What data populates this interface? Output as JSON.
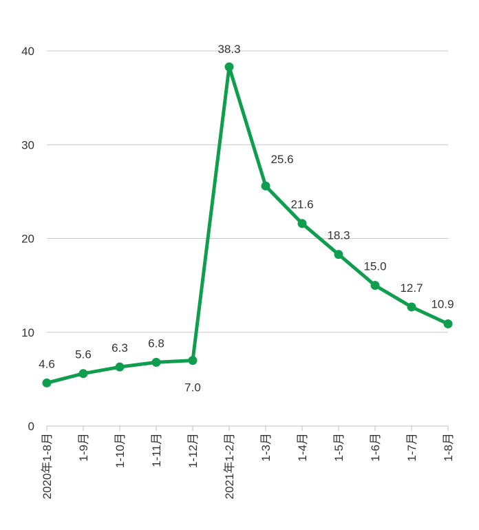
{
  "chart_data": {
    "type": "line",
    "title": "",
    "xlabel": "",
    "ylabel": "",
    "categories": [
      "2020年1-8月",
      "1-9月",
      "1-10月",
      "1-11月",
      "1-12月",
      "2021年1-2月",
      "1-3月",
      "1-4月",
      "1-5月",
      "1-6月",
      "1-7月",
      "1-8月"
    ],
    "series": [
      {
        "values": [
          4.6,
          5.6,
          6.3,
          6.8,
          7.0,
          38.3,
          25.6,
          21.6,
          18.3,
          15.0,
          12.7,
          10.9
        ],
        "labels": [
          "4.6",
          "5.6",
          "6.3",
          "6.8",
          "7.0",
          "38.3",
          "25.6",
          "21.6",
          "18.3",
          "15.0",
          "12.7",
          "10.9"
        ],
        "color": "#0f9d4e"
      }
    ],
    "yticks": [
      "0",
      "10",
      "20",
      "30",
      "40"
    ],
    "ylim": [
      0,
      40
    ],
    "grid": true,
    "legend": "none",
    "colors": {
      "line": "#0f9d4e",
      "grid": "#c8c8c8",
      "axis": "#bdbdbd",
      "text": "#333333"
    }
  }
}
